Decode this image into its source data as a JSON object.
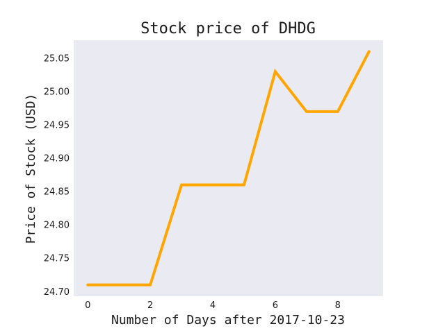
{
  "chart_data": {
    "type": "line",
    "title": "Stock price of DHDG",
    "xlabel": "Number of Days after 2017-10-23",
    "ylabel": "Price of Stock (USD)",
    "x": [
      0,
      1,
      2,
      3,
      4,
      5,
      6,
      7,
      8,
      9
    ],
    "series": [
      {
        "values": [
          24.71,
          24.71,
          24.71,
          24.86,
          24.86,
          24.86,
          25.03,
          24.97,
          24.97,
          25.06
        ],
        "color": "#ffa500"
      }
    ],
    "xlim": [
      -0.45,
      9.45
    ],
    "ylim": [
      24.693,
      25.077
    ],
    "x_ticks": [
      0,
      2,
      4,
      6,
      8
    ],
    "y_ticks": [
      24.7,
      24.75,
      24.8,
      24.85,
      24.9,
      24.95,
      25.0,
      25.05
    ],
    "x_tick_labels": [
      "0",
      "2",
      "4",
      "6",
      "8"
    ],
    "y_tick_labels": [
      "24.70",
      "24.75",
      "24.80",
      "24.85",
      "24.90",
      "24.95",
      "25.00",
      "25.05"
    ],
    "grid": false,
    "plot_background": "#eaeaf2"
  }
}
